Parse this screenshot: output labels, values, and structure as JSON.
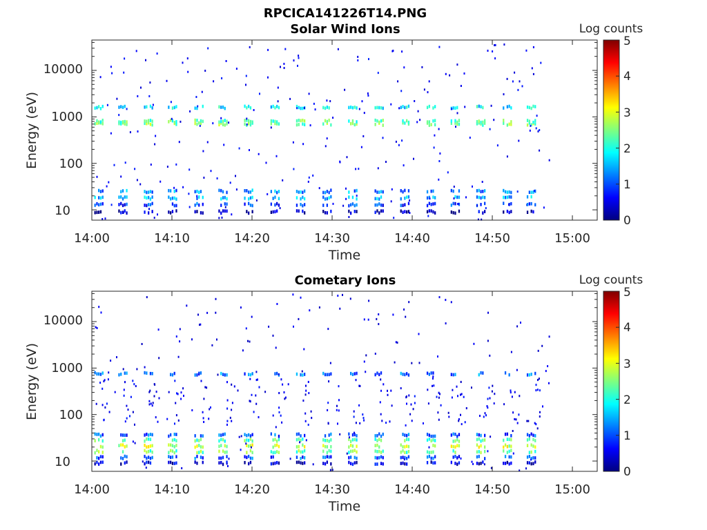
{
  "figure_title": "RPCICA141226T14.PNG",
  "colors": {
    "colormap": [
      "#00007f",
      "#0000ff",
      "#007fff",
      "#00ffff",
      "#7fff7f",
      "#ffff00",
      "#ff7f00",
      "#ff0000",
      "#7f0000"
    ]
  },
  "chart_data": [
    {
      "type": "heatmap",
      "title": "Solar Wind Ions",
      "xlabel": "Time",
      "ylabel": "Energy (eV)",
      "yscale": "log",
      "xticks": [
        "14:00",
        "14:10",
        "14:20",
        "14:30",
        "14:40",
        "14:50",
        "15:00"
      ],
      "yticks": [
        "10",
        "100",
        "1000",
        "10000"
      ],
      "ylim": [
        6,
        45000
      ],
      "colorbar_label": "Log counts",
      "colorbar_ticks": [
        "0",
        "1",
        "2",
        "3",
        "4",
        "5"
      ],
      "clim": [
        0,
        5
      ],
      "sweep_start_minutes": [
        0.3,
        3.3,
        6.5,
        9.5,
        12.8,
        15.8,
        19.0,
        22.3,
        25.5,
        28.8,
        32.0,
        35.3,
        38.5,
        41.8,
        44.8,
        48.0,
        51.3,
        54.3
      ],
      "bands": [
        {
          "energy_eV": 700,
          "level": 2.5
        },
        {
          "energy_eV": 800,
          "level": 2.3
        },
        {
          "energy_eV": 1600,
          "level": 1.8
        },
        {
          "energy_eV": 25,
          "level": 1.3
        },
        {
          "energy_eV": 18,
          "level": 1.5
        },
        {
          "energy_eV": 13,
          "level": 0.9
        },
        {
          "energy_eV": 9,
          "level": 0.3
        }
      ],
      "scatter_level": 0.4
    },
    {
      "type": "heatmap",
      "title": "Cometary Ions",
      "xlabel": "Time",
      "ylabel": "Energy (eV)",
      "yscale": "log",
      "xticks": [
        "14:00",
        "14:10",
        "14:20",
        "14:30",
        "14:40",
        "14:50",
        "15:00"
      ],
      "yticks": [
        "10",
        "100",
        "1000",
        "10000"
      ],
      "ylim": [
        6,
        45000
      ],
      "colorbar_label": "Log counts",
      "colorbar_ticks": [
        "0",
        "1",
        "2",
        "3",
        "4",
        "5"
      ],
      "clim": [
        0,
        5
      ],
      "sweep_start_minutes": [
        0.3,
        3.3,
        6.5,
        9.5,
        12.8,
        15.8,
        19.0,
        22.3,
        25.5,
        28.8,
        32.0,
        35.3,
        38.5,
        41.8,
        44.8,
        48.0,
        51.3,
        54.3
      ],
      "bands": [
        {
          "energy_eV": 36,
          "level": 1.0
        },
        {
          "energy_eV": 28,
          "level": 2.2
        },
        {
          "energy_eV": 21,
          "level": 2.8
        },
        {
          "energy_eV": 16,
          "level": 2.4
        },
        {
          "energy_eV": 12,
          "level": 1.0
        },
        {
          "energy_eV": 9,
          "level": 0.4
        },
        {
          "energy_eV": 750,
          "level": 1.2
        }
      ],
      "scatter_level": 0.3
    }
  ]
}
